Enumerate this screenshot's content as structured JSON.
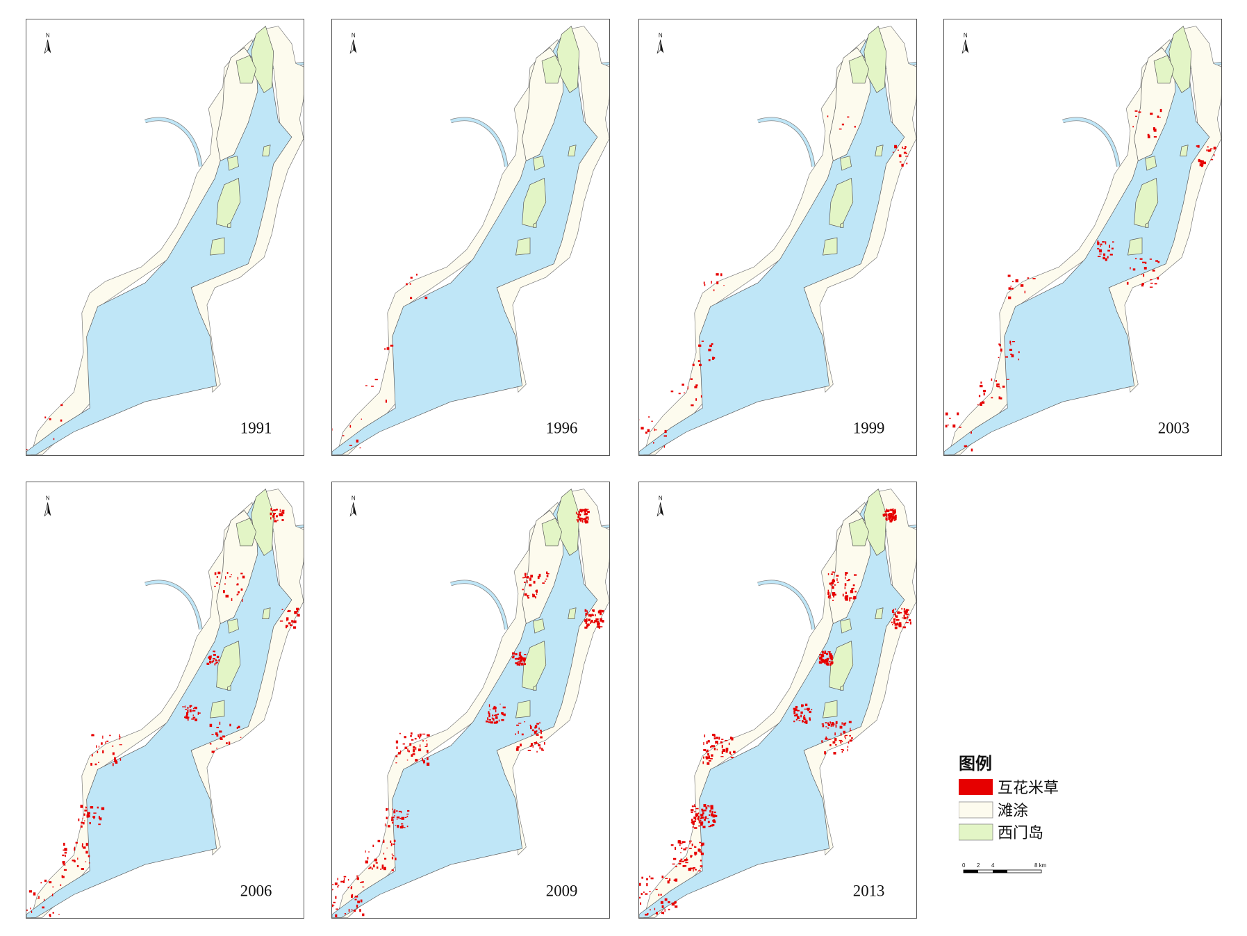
{
  "panels": [
    {
      "year": "1991"
    },
    {
      "year": "1996"
    },
    {
      "year": "1999"
    },
    {
      "year": "2003"
    },
    {
      "year": "2006"
    },
    {
      "year": "2009"
    },
    {
      "year": "2013"
    }
  ],
  "north_label": "N",
  "legend": {
    "title": "图例",
    "items": [
      "互花米草",
      "滩涂",
      "西门岛"
    ]
  },
  "scale_bar": {
    "labels": [
      "0",
      "2",
      "4",
      "8 km"
    ]
  }
}
